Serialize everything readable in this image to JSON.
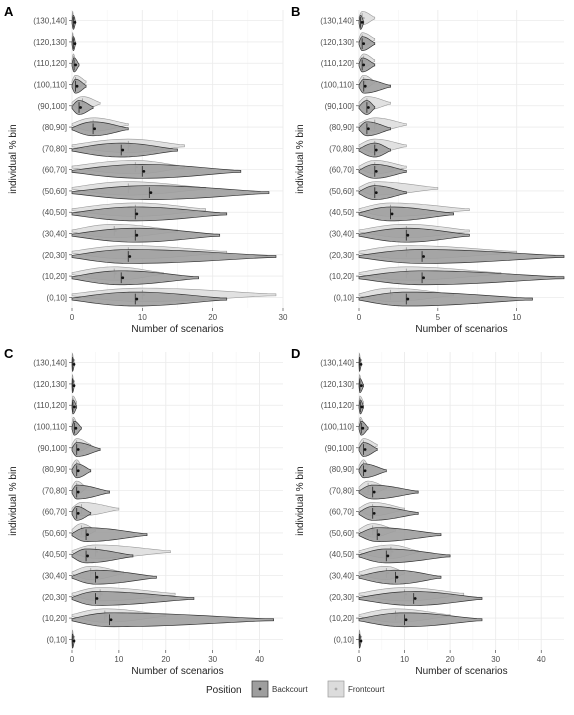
{
  "colors": {
    "backcourt_fill": "#9e9e9e",
    "frontcourt_fill": "#dcdcdc",
    "backcourt_line": "#333333",
    "frontcourt_line": "#9a9a9a",
    "grid": "#ebebeb"
  },
  "legend": {
    "title": "Position",
    "items": [
      "Backcourt",
      "Frontcourt"
    ]
  },
  "chart_data": [
    {
      "type": "violin",
      "panel": "A",
      "ylabel": "individual % bin",
      "xlabel": "Number of scenarios",
      "xlim": [
        0,
        30
      ],
      "xticks": [
        0,
        10,
        20,
        30
      ],
      "grid": true,
      "categories": [
        "(0,10]",
        "(10,20]",
        "(20,30]",
        "(30,40]",
        "(40,50]",
        "(50,60]",
        "(60,70]",
        "(70,80]",
        "(80,90]",
        "(90,100]",
        "(100,110]",
        "(110,120]",
        "(120,130]",
        "(130,140]"
      ],
      "series": [
        {
          "name": "Backcourt",
          "max": [
            22,
            18,
            29,
            21,
            22,
            28,
            24,
            15,
            8,
            3,
            2,
            1,
            0.5,
            0.5
          ],
          "median": [
            9,
            7,
            8,
            9,
            9,
            11,
            10,
            7,
            3,
            1,
            0.5,
            0.3,
            0.2,
            0.2
          ]
        },
        {
          "name": "Frontcourt",
          "max": [
            29,
            13,
            22,
            15,
            19,
            19,
            16,
            16,
            8,
            4,
            2,
            0.5,
            0.2,
            0.2
          ],
          "median": [
            10,
            6,
            8,
            6,
            9,
            8,
            9,
            8,
            3,
            1.5,
            0.5,
            0.2,
            0.1,
            0.1
          ]
        }
      ]
    },
    {
      "type": "violin",
      "panel": "B",
      "ylabel": "individual % bin",
      "xlabel": "Number of scenarios",
      "xlim": [
        0,
        13
      ],
      "xticks": [
        0,
        5,
        10
      ],
      "grid": true,
      "categories": [
        "(0,10]",
        "(10,20]",
        "(20,30]",
        "(30,40]",
        "(40,50]",
        "(50,60]",
        "(60,70]",
        "(70,80]",
        "(80,90]",
        "(90,100]",
        "(100,110]",
        "(110,120]",
        "(120,130]",
        "(130,140]"
      ],
      "series": [
        {
          "name": "Backcourt",
          "max": [
            11,
            13,
            13,
            7,
            6,
            3,
            3,
            2,
            2,
            1,
            2,
            1,
            1,
            0.3
          ],
          "median": [
            3,
            4,
            4,
            3,
            2,
            1,
            1,
            1,
            0.5,
            0.5,
            0.3,
            0.2,
            0.2,
            0.1
          ]
        },
        {
          "name": "Frontcourt",
          "max": [
            6,
            9,
            10,
            7,
            7,
            5,
            3,
            3,
            3,
            2,
            1,
            1,
            1,
            1
          ],
          "median": [
            2,
            3,
            3,
            3,
            2,
            1,
            1,
            1,
            1,
            0.5,
            0.3,
            0.3,
            0.2,
            0.2
          ]
        }
      ]
    },
    {
      "type": "violin",
      "panel": "C",
      "ylabel": "individual % bin",
      "xlabel": "Number of scenarios",
      "xlim": [
        0,
        45
      ],
      "xticks": [
        0,
        10,
        20,
        30,
        40
      ],
      "grid": true,
      "categories": [
        "(0,10]",
        "(10,20]",
        "(20,30]",
        "(30,40]",
        "(40,50]",
        "(50,60]",
        "(60,70]",
        "(70,80]",
        "(80,90]",
        "(90,100]",
        "(100,110]",
        "(110,120]",
        "(120,130]",
        "(130,140]"
      ],
      "series": [
        {
          "name": "Backcourt",
          "max": [
            0.5,
            43,
            26,
            18,
            13,
            16,
            4,
            8,
            4,
            6,
            2,
            1,
            0.5,
            0.5
          ],
          "median": [
            0.1,
            8,
            5,
            5,
            3,
            3,
            1,
            1,
            1,
            1,
            0.5,
            0.2,
            0.1,
            0.1
          ]
        },
        {
          "name": "Frontcourt",
          "max": [
            0.3,
            20,
            22,
            11,
            21,
            5,
            10,
            3,
            2,
            4,
            1,
            1,
            0.3,
            0.3
          ],
          "median": [
            0.1,
            7,
            6,
            4,
            5,
            2,
            2,
            1,
            1,
            1,
            0.3,
            0.2,
            0.1,
            0.1
          ]
        }
      ]
    },
    {
      "type": "violin",
      "panel": "D",
      "ylabel": "individual % bin",
      "xlabel": "Number of scenarios",
      "xlim": [
        0,
        45
      ],
      "xticks": [
        0,
        10,
        20,
        30,
        40
      ],
      "grid": true,
      "categories": [
        "(0,10]",
        "(10,20]",
        "(20,30]",
        "(30,40]",
        "(40,50]",
        "(50,60]",
        "(60,70]",
        "(70,80]",
        "(80,90]",
        "(90,100]",
        "(100,110]",
        "(110,120]",
        "(120,130]",
        "(130,140]"
      ],
      "series": [
        {
          "name": "Backcourt",
          "max": [
            0.5,
            27,
            27,
            18,
            20,
            18,
            13,
            13,
            6,
            4,
            2,
            1,
            1,
            0.5
          ],
          "median": [
            0.1,
            10,
            12,
            8,
            6,
            4,
            3,
            3,
            1,
            1,
            0.5,
            0.3,
            0.2,
            0.1
          ]
        },
        {
          "name": "Frontcourt",
          "max": [
            0.3,
            20,
            23,
            10,
            13,
            8,
            10,
            6,
            2,
            4,
            1,
            1,
            0.5,
            0.3
          ],
          "median": [
            0.1,
            8,
            10,
            6,
            7,
            3,
            3,
            2,
            1,
            1,
            0.3,
            0.2,
            0.1,
            0.1
          ]
        }
      ]
    }
  ]
}
